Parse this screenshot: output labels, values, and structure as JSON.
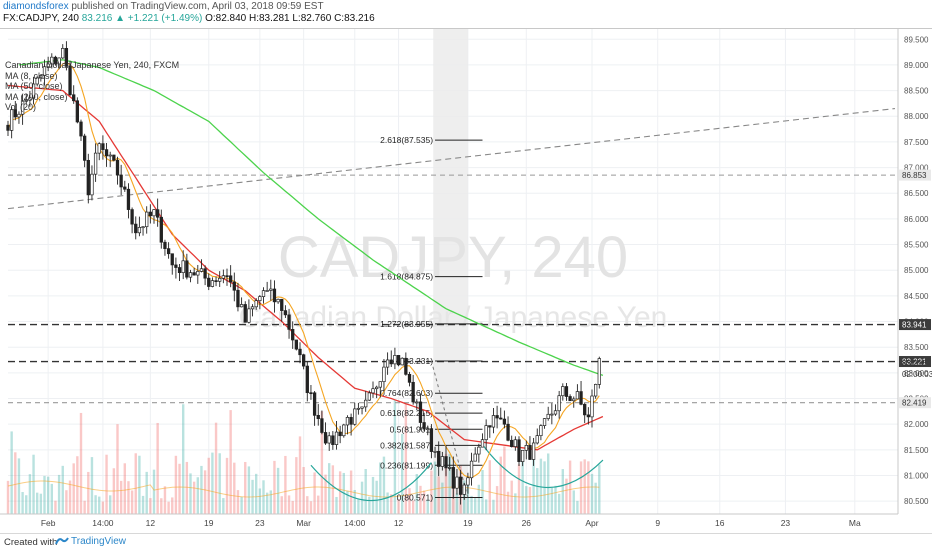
{
  "header": {
    "author": "diamondsforex",
    "published": "published on TradingView.com, April 03, 2018 09:59 EST",
    "symbol": "FX:CADJPY, 240",
    "change": "83.216 ▲ +1.221 (+1.49%)",
    "ohlc": "O:82.840 H:83.281 L:82.760 C:83.216"
  },
  "legend": {
    "title": "Canadian Dollar/Japanese Yen, 240, FXCM",
    "ma8": "MA (8, close)",
    "ma50": "MA (50, close)",
    "ma200": "MA (200, close)",
    "vol": "Vol (20)"
  },
  "watermark": {
    "symbol": "CADJPY, 240",
    "name": "Canadian Dollar / Japanese Yen"
  },
  "footer": {
    "created": "Created with",
    "brand": "TradingView"
  },
  "colors": {
    "up": "#26a69a",
    "down": "#ef5350",
    "candle": "#222222",
    "ma8": "#f5a623",
    "ma50": "#e53935",
    "ma200": "#4cd34c",
    "channel": "#26a69a",
    "priceTag": "#3c3c3c"
  },
  "chart_data": {
    "type": "candlestick",
    "instrument": "CADJPY",
    "timeframe": "240",
    "ylim": [
      80.25,
      89.7
    ],
    "y_ticks": [
      "89.500",
      "89.000",
      "88.500",
      "88.000",
      "87.500",
      "87.000",
      "86.500",
      "86.000",
      "85.500",
      "85.000",
      "84.500",
      "84.000",
      "83.500",
      "83.000",
      "82.500",
      "82.000",
      "81.500",
      "81.000",
      "80.500"
    ],
    "x_ticks": [
      {
        "label": "Feb",
        "i": 11
      },
      {
        "label": "14:00",
        "i": 26
      },
      {
        "label": "12",
        "i": 39
      },
      {
        "label": "19",
        "i": 55
      },
      {
        "label": "23",
        "i": 69
      },
      {
        "label": "Mar",
        "i": 81
      },
      {
        "label": "14:00",
        "i": 95
      },
      {
        "label": "12",
        "i": 107
      },
      {
        "label": "19",
        "i": 126
      },
      {
        "label": "26",
        "i": 142
      },
      {
        "label": "Apr",
        "i": 160
      },
      {
        "label": "9",
        "i": 178
      },
      {
        "label": "16",
        "i": 195
      },
      {
        "label": "23",
        "i": 213
      },
      {
        "label": "Ma",
        "i": 232
      }
    ],
    "price_anchors": [
      [
        0,
        87.9
      ],
      [
        5,
        88.3
      ],
      [
        10,
        88.9
      ],
      [
        15,
        89.25
      ],
      [
        19,
        87.9
      ],
      [
        22,
        86.6
      ],
      [
        25,
        87.4
      ],
      [
        30,
        86.9
      ],
      [
        35,
        85.8
      ],
      [
        40,
        86.1
      ],
      [
        45,
        85.1
      ],
      [
        50,
        85.0
      ],
      [
        55,
        84.8
      ],
      [
        60,
        84.95
      ],
      [
        65,
        84.0
      ],
      [
        70,
        84.6
      ],
      [
        75,
        84.3
      ],
      [
        79,
        83.5
      ],
      [
        83,
        82.5
      ],
      [
        88,
        81.6
      ],
      [
        93,
        82.1
      ],
      [
        97,
        82.2
      ],
      [
        100,
        82.6
      ],
      [
        104,
        83.4
      ],
      [
        108,
        83.2
      ],
      [
        112,
        82.3
      ],
      [
        116,
        81.6
      ],
      [
        120,
        81.1
      ],
      [
        125,
        80.65
      ],
      [
        128,
        81.5
      ],
      [
        132,
        82.1
      ],
      [
        136,
        82.0
      ],
      [
        140,
        81.4
      ],
      [
        144,
        81.5
      ],
      [
        148,
        82.1
      ],
      [
        152,
        82.6
      ],
      [
        156,
        82.5
      ],
      [
        159,
        82.1
      ],
      [
        162,
        83.2
      ]
    ],
    "ma200_anchors": [
      [
        3,
        89.0
      ],
      [
        15,
        89.1
      ],
      [
        25,
        88.95
      ],
      [
        40,
        88.5
      ],
      [
        55,
        87.9
      ],
      [
        70,
        86.9
      ],
      [
        85,
        86.0
      ],
      [
        100,
        85.2
      ],
      [
        120,
        84.25
      ],
      [
        140,
        83.6
      ],
      [
        155,
        83.15
      ],
      [
        163,
        82.95
      ]
    ],
    "ma50_anchors": [
      [
        0,
        88.6
      ],
      [
        15,
        88.5
      ],
      [
        25,
        87.9
      ],
      [
        35,
        86.8
      ],
      [
        45,
        85.7
      ],
      [
        55,
        85.0
      ],
      [
        65,
        84.6
      ],
      [
        75,
        84.0
      ],
      [
        85,
        83.3
      ],
      [
        95,
        82.7
      ],
      [
        105,
        82.5
      ],
      [
        115,
        82.25
      ],
      [
        125,
        81.7
      ],
      [
        135,
        81.6
      ],
      [
        145,
        81.5
      ],
      [
        155,
        81.9
      ],
      [
        163,
        82.15
      ]
    ],
    "fib_levels": [
      {
        "label": "2.618(87.535)",
        "value": 87.535
      },
      {
        "label": "1.618(84.875)",
        "value": 84.875
      },
      {
        "label": "1.272(83.955)",
        "value": 83.955
      },
      {
        "label": "1(83.231)",
        "value": 83.231
      },
      {
        "label": "0.764(82.603)",
        "value": 82.603
      },
      {
        "label": "0.618(82.215)",
        "value": 82.215
      },
      {
        "label": "0.5(81.901)",
        "value": 81.901
      },
      {
        "label": "0.382(81.587)",
        "value": 81.587
      },
      {
        "label": "0.236(81.199)",
        "value": 81.199
      },
      {
        "label": "0(80.571)",
        "value": 80.571
      }
    ],
    "horizontal_lines": [
      {
        "value": 86.853,
        "label": "86.853"
      },
      {
        "value": 83.941,
        "label": "83.941"
      },
      {
        "value": 83.221,
        "label": "83.221"
      },
      {
        "value": 82.419,
        "label": "82.419"
      }
    ],
    "current_price": {
      "value": 83.216,
      "label": "83.216",
      "countdown": "02:00:03"
    },
    "trendline": {
      "from": {
        "i": 0,
        "v": 86.2
      },
      "to": {
        "i": 243,
        "v": 88.15
      }
    }
  }
}
